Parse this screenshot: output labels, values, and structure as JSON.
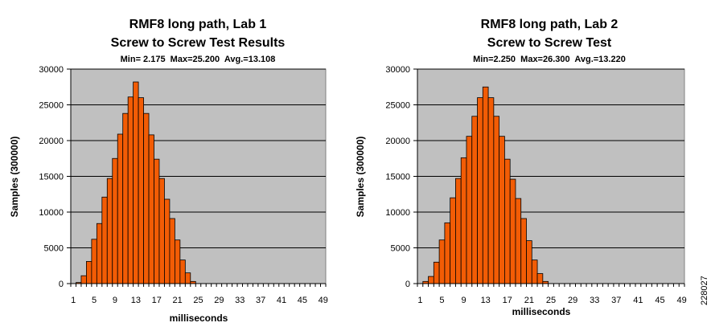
{
  "chart_data": [
    {
      "type": "bar",
      "title": "RMF8 long path, Lab 1",
      "subtitle": "Screw to Screw Test Results",
      "stats": "Min= 2.175  Max=25.200  Avg.=13.108",
      "xlabel": "milliseconds",
      "ylabel": "Samples (300000)",
      "ylim": [
        0,
        30000
      ],
      "yticks": [
        0,
        5000,
        10000,
        15000,
        20000,
        25000,
        30000
      ],
      "xticks": [
        1,
        5,
        9,
        13,
        17,
        21,
        25,
        29,
        33,
        37,
        41,
        45,
        49
      ],
      "grid": true,
      "bar_color": "#f25c05",
      "plot_bg": "#c0c0c0",
      "x": [
        1,
        2,
        3,
        4,
        5,
        6,
        7,
        8,
        9,
        10,
        11,
        12,
        13,
        14,
        15,
        16,
        17,
        18,
        19,
        20,
        21,
        22,
        23,
        24,
        25,
        26,
        27,
        28,
        29,
        30,
        31,
        32,
        33,
        34,
        35,
        36,
        37,
        38,
        39,
        40,
        41,
        42,
        43,
        44,
        45,
        46,
        47,
        48,
        49
      ],
      "values": [
        0,
        150,
        1100,
        3100,
        6200,
        8400,
        12100,
        14700,
        17500,
        20900,
        23800,
        26100,
        28200,
        26000,
        23800,
        20800,
        17400,
        14700,
        11800,
        9100,
        6100,
        3300,
        1500,
        300,
        0,
        0,
        0,
        0,
        0,
        0,
        0,
        0,
        0,
        0,
        0,
        0,
        0,
        0,
        0,
        0,
        0,
        0,
        0,
        0,
        0,
        0,
        0,
        0,
        0
      ]
    },
    {
      "type": "bar",
      "title": "RMF8 long path, Lab 2",
      "subtitle": "Screw to Screw Test",
      "stats": "Min=2.250  Max=26.300  Avg.=13.220",
      "xlabel": "milliseconds",
      "ylabel": "Samples (300000)",
      "ylim": [
        0,
        30000
      ],
      "yticks": [
        0,
        5000,
        10000,
        15000,
        20000,
        25000,
        30000
      ],
      "xticks": [
        1,
        5,
        9,
        13,
        17,
        21,
        25,
        29,
        33,
        37,
        41,
        45,
        49
      ],
      "grid": true,
      "bar_color": "#f25c05",
      "plot_bg": "#c0c0c0",
      "x": [
        1,
        2,
        3,
        4,
        5,
        6,
        7,
        8,
        9,
        10,
        11,
        12,
        13,
        14,
        15,
        16,
        17,
        18,
        19,
        20,
        21,
        22,
        23,
        24,
        25,
        26,
        27,
        28,
        29,
        30,
        31,
        32,
        33,
        34,
        35,
        36,
        37,
        38,
        39,
        40,
        41,
        42,
        43,
        44,
        45,
        46,
        47,
        48,
        49
      ],
      "values": [
        0,
        300,
        1000,
        3000,
        6100,
        8500,
        12000,
        14700,
        17600,
        20600,
        23400,
        26000,
        27500,
        26000,
        23400,
        20600,
        17400,
        14600,
        11900,
        9100,
        6000,
        3300,
        1400,
        300,
        0,
        0,
        0,
        0,
        0,
        0,
        0,
        0,
        0,
        0,
        0,
        0,
        0,
        0,
        0,
        0,
        0,
        0,
        0,
        0,
        0,
        0,
        0,
        0,
        0
      ]
    }
  ],
  "figure_id": "228027"
}
